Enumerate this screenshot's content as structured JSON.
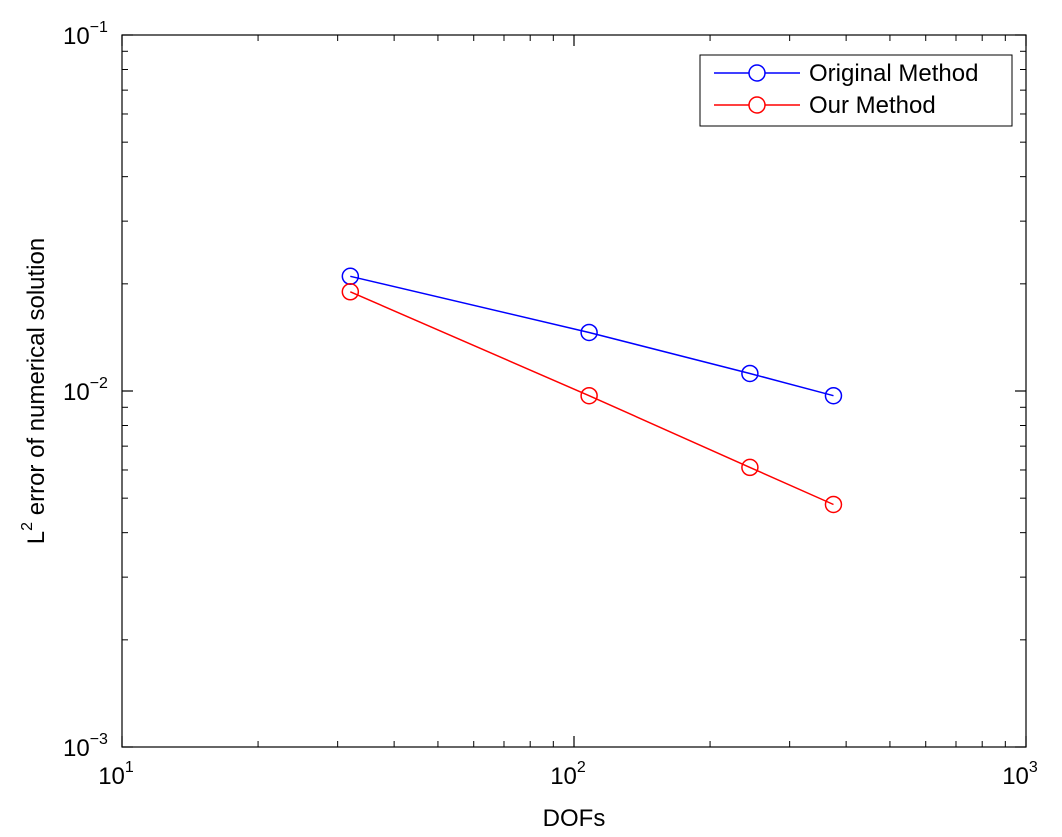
{
  "chart_data": {
    "type": "line",
    "title": "",
    "xlabel": "DOFs",
    "ylabel_base": "L",
    "ylabel_sup": "2",
    "ylabel_rest": " error of numerical solution",
    "xscale": "log",
    "yscale": "log",
    "xlim": [
      10,
      1000
    ],
    "ylim": [
      0.001,
      0.1
    ],
    "x_ticks": [
      {
        "value": 10,
        "base": "10",
        "exp": "1"
      },
      {
        "value": 100,
        "base": "10",
        "exp": "2"
      },
      {
        "value": 1000,
        "base": "10",
        "exp": "3"
      }
    ],
    "y_ticks": [
      {
        "value": 0.001,
        "base": "10",
        "exp": "−3"
      },
      {
        "value": 0.01,
        "base": "10",
        "exp": "−2"
      },
      {
        "value": 0.1,
        "base": "10",
        "exp": "−1"
      }
    ],
    "grid": false,
    "legend_position": "top-right",
    "series": [
      {
        "name": "Original Method",
        "color": "#0000ff",
        "marker": "circle",
        "x": [
          32,
          108,
          245,
          375
        ],
        "y": [
          0.021,
          0.0146,
          0.0112,
          0.0097
        ]
      },
      {
        "name": "Our Method",
        "color": "#ff0000",
        "marker": "circle",
        "x": [
          32,
          108,
          245,
          375
        ],
        "y": [
          0.019,
          0.0097,
          0.0061,
          0.0048
        ]
      }
    ]
  }
}
